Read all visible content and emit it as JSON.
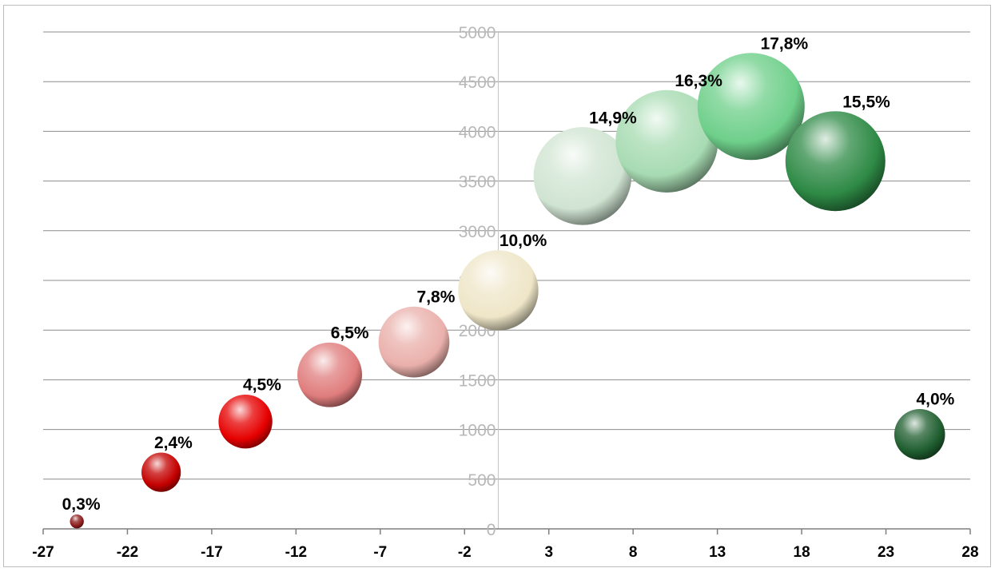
{
  "chart_data": {
    "type": "bubble",
    "title": "",
    "xlabel": "",
    "ylabel": "",
    "xlim": [
      -27,
      28
    ],
    "ylim": [
      0,
      5000
    ],
    "x_ticks": [
      -27,
      -22,
      -17,
      -12,
      -7,
      -2,
      3,
      8,
      13,
      18,
      23,
      28
    ],
    "y_ticks": [
      0,
      500,
      1000,
      1500,
      2000,
      2500,
      3000,
      3500,
      4000,
      4500,
      5000
    ],
    "grid": "horizontal",
    "legend": "none",
    "points": [
      {
        "x": -25,
        "y": 75,
        "size": 0.3,
        "label": "0,3%",
        "color": "#8b1a1a"
      },
      {
        "x": -20,
        "y": 570,
        "size": 2.4,
        "label": "2,4%",
        "color": "#c40000"
      },
      {
        "x": -15,
        "y": 1080,
        "size": 4.5,
        "label": "4,5%",
        "color": "#e60000"
      },
      {
        "x": -10,
        "y": 1550,
        "size": 6.5,
        "label": "6,5%",
        "color": "#e07d7d"
      },
      {
        "x": -5,
        "y": 1880,
        "size": 7.8,
        "label": "7,8%",
        "color": "#eab0ab"
      },
      {
        "x": 0,
        "y": 2400,
        "size": 10.0,
        "label": "10,0%",
        "color": "#efe6c8"
      },
      {
        "x": 5,
        "y": 3550,
        "size": 14.9,
        "label": "14,9%",
        "color": "#d0e4d2"
      },
      {
        "x": 10,
        "y": 3900,
        "size": 16.3,
        "label": "16,3%",
        "color": "#a7dbb2"
      },
      {
        "x": 15,
        "y": 4250,
        "size": 17.8,
        "label": "17,8%",
        "color": "#6ecf8a"
      },
      {
        "x": 20,
        "y": 3700,
        "size": 15.5,
        "label": "15,5%",
        "color": "#2e8a45"
      },
      {
        "x": 25,
        "y": 950,
        "size": 4.0,
        "label": "4,0%",
        "color": "#1f5e2f"
      }
    ]
  }
}
